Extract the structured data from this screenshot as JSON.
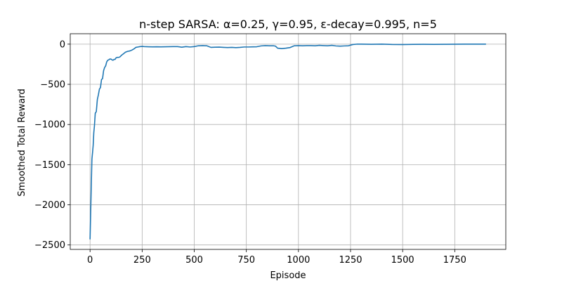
{
  "chart_data": {
    "type": "line",
    "title": "n-step SARSA: α=0.25, γ=0.95, ε-decay=0.995, n=5",
    "xlabel": "Episode",
    "ylabel": "Smoothed Total Reward",
    "xlim": [
      -95,
      1995
    ],
    "ylim": [
      -2555,
      130
    ],
    "xticks": [
      0,
      250,
      500,
      750,
      1000,
      1250,
      1500,
      1750
    ],
    "xtick_labels": [
      "0",
      "250",
      "500",
      "750",
      "1000",
      "1250",
      "1500",
      "1750"
    ],
    "yticks": [
      0,
      -500,
      -1000,
      -1500,
      -2000,
      -2500
    ],
    "ytick_labels": [
      "0",
      "−500",
      "−1000",
      "−1500",
      "−2000",
      "−2500"
    ],
    "grid": true,
    "legend": "none",
    "series": [
      {
        "color": "#1f77b4",
        "x": [
          0,
          3,
          6,
          9,
          12,
          15,
          18,
          21,
          25,
          30,
          35,
          40,
          45,
          50,
          55,
          60,
          65,
          70,
          75,
          80,
          85,
          90,
          95,
          100,
          105,
          110,
          115,
          120,
          125,
          130,
          135,
          140,
          145,
          150,
          160,
          170,
          180,
          190,
          200,
          210,
          220,
          230,
          240,
          250,
          260,
          280,
          300,
          320,
          340,
          360,
          380,
          400,
          420,
          440,
          460,
          480,
          500,
          520,
          540,
          560,
          580,
          600,
          620,
          640,
          660,
          680,
          700,
          720,
          740,
          760,
          780,
          800,
          820,
          840,
          860,
          880,
          890,
          900,
          920,
          940,
          960,
          980,
          1000,
          1020,
          1040,
          1060,
          1080,
          1100,
          1120,
          1140,
          1160,
          1180,
          1200,
          1220,
          1240,
          1260,
          1280,
          1300,
          1350,
          1400,
          1450,
          1500,
          1550,
          1600,
          1650,
          1700,
          1750,
          1800,
          1850,
          1900
        ],
        "y": [
          -2430,
          -2100,
          -1750,
          -1430,
          -1350,
          -1260,
          -1100,
          -1020,
          -860,
          -840,
          -690,
          -630,
          -560,
          -540,
          -440,
          -430,
          -330,
          -290,
          -270,
          -220,
          -200,
          -195,
          -185,
          -185,
          -195,
          -200,
          -190,
          -190,
          -170,
          -165,
          -165,
          -163,
          -155,
          -140,
          -120,
          -100,
          -90,
          -85,
          -75,
          -60,
          -40,
          -35,
          -30,
          -28,
          -30,
          -32,
          -33,
          -32,
          -33,
          -32,
          -31,
          -30,
          -30,
          -38,
          -30,
          -35,
          -30,
          -20,
          -18,
          -20,
          -40,
          -38,
          -37,
          -40,
          -42,
          -40,
          -43,
          -40,
          -35,
          -35,
          -33,
          -32,
          -22,
          -18,
          -20,
          -20,
          -25,
          -50,
          -55,
          -50,
          -42,
          -20,
          -18,
          -20,
          -18,
          -18,
          -20,
          -15,
          -18,
          -20,
          -15,
          -22,
          -25,
          -22,
          -20,
          -5,
          0,
          0,
          -2,
          0,
          -4,
          -5,
          -3,
          -2,
          -3,
          -2,
          -1,
          0,
          0,
          0
        ]
      }
    ]
  }
}
